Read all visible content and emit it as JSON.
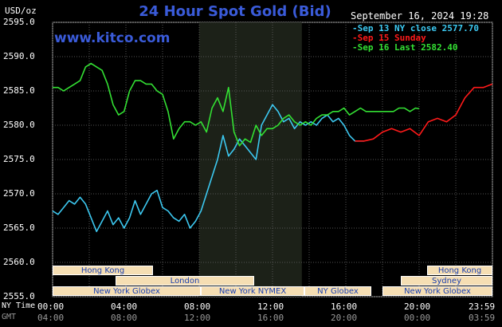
{
  "title": "24 Hour Spot Gold (Bid)",
  "brand": "www.kitco.com",
  "unit": "USD/oz",
  "legend": {
    "date_time": "September 16, 2024 19:28",
    "items": [
      {
        "label": "Sep 13 NY close 2577.70",
        "color": "#3cc8f0"
      },
      {
        "label": "Sep 15 Sunday",
        "color": "#ff1a1a"
      },
      {
        "label": "Sep 16 Last 2582.40",
        "color": "#33e033"
      }
    ]
  },
  "axis_labels": {
    "ny_time": "NY Time",
    "gmt": "GMT",
    "y_ticks": [
      "2595.0",
      "2590.0",
      "2585.0",
      "2580.0",
      "2575.0",
      "2570.0",
      "2565.0",
      "2560.0",
      "2555.0"
    ],
    "x_ny": [
      "00:00",
      "04:00",
      "08:00",
      "12:00",
      "16:00",
      "20:00",
      "23:59"
    ],
    "x_gmt": [
      "04:00",
      "08:00",
      "12:00",
      "16:00",
      "20:00",
      "00:00",
      "03:59"
    ]
  },
  "sessions": [
    {
      "label": "Hong Kong",
      "start": 0,
      "end": 5.45
    },
    {
      "label": "London",
      "start": 3.4,
      "end": 10.9
    },
    {
      "label": "New York Globex",
      "start": 0,
      "end": 8.0
    },
    {
      "label": "New York NYMEX",
      "start": 8.0,
      "end": 13.6
    },
    {
      "label": "NY Globex",
      "start": 13.6,
      "end": 17.0
    },
    {
      "label": "Hong Kong",
      "start": 20.0,
      "end": 23.99
    },
    {
      "label": "Sydney",
      "start": 18.9,
      "end": 23.99
    },
    {
      "label": "New York Globex",
      "start": 18.0,
      "end": 23.99
    }
  ],
  "chart_data": {
    "type": "line",
    "title": "24 Hour Spot Gold (Bid)",
    "xlabel": "NY Time",
    "ylabel": "USD/oz",
    "x_unit": "hours NY time",
    "xlim": [
      0,
      24
    ],
    "ylim": [
      2555.0,
      2595.0
    ],
    "grid": true,
    "legend_position": "top-right",
    "highlight_range": [
      8.0,
      13.6
    ],
    "series": [
      {
        "name": "Sep 13 NY close 2577.70",
        "color": "#3cc8f0",
        "x": [
          0,
          0.3,
          0.6,
          0.9,
          1.2,
          1.5,
          1.8,
          2.1,
          2.4,
          2.7,
          3.0,
          3.3,
          3.6,
          3.9,
          4.2,
          4.5,
          4.8,
          5.1,
          5.4,
          5.7,
          6.0,
          6.3,
          6.6,
          6.9,
          7.2,
          7.5,
          7.8,
          8.1,
          8.4,
          8.7,
          9.0,
          9.3,
          9.6,
          9.9,
          10.2,
          10.5,
          10.8,
          11.1,
          11.4,
          11.7,
          12.0,
          12.3,
          12.6,
          12.9,
          13.2,
          13.5,
          13.8,
          14.1,
          14.4,
          14.7,
          15.0,
          15.3,
          15.6,
          15.9,
          16.2,
          16.5,
          16.8,
          17.0
        ],
        "y": [
          2567.5,
          2567.0,
          2568.0,
          2569.0,
          2568.5,
          2569.5,
          2568.5,
          2566.5,
          2564.5,
          2566.0,
          2567.5,
          2565.5,
          2566.5,
          2565.0,
          2566.5,
          2569.0,
          2567.0,
          2568.5,
          2570.0,
          2570.5,
          2568.0,
          2567.5,
          2566.5,
          2566.0,
          2567.0,
          2565.0,
          2566.0,
          2567.5,
          2570.0,
          2572.5,
          2575.0,
          2578.5,
          2575.5,
          2576.5,
          2578.0,
          2577.0,
          2576.0,
          2575.0,
          2580.0,
          2581.5,
          2583.0,
          2582.0,
          2580.5,
          2581.0,
          2579.5,
          2580.5,
          2580.0,
          2580.5,
          2580.0,
          2581.0,
          2581.5,
          2580.5,
          2581.0,
          2580.0,
          2578.5,
          2577.7,
          2577.7,
          2577.7
        ]
      },
      {
        "name": "Sep 15 Sunday",
        "color": "#ff1a1a",
        "x": [
          16.5,
          17.0,
          17.5,
          18.0,
          18.5,
          19.0,
          19.5,
          20.0,
          20.5,
          21.0,
          21.5,
          22.0,
          22.5,
          23.0,
          23.5,
          23.99
        ],
        "y": [
          2577.7,
          2577.7,
          2578.0,
          2579.0,
          2579.5,
          2579.0,
          2579.5,
          2578.5,
          2580.5,
          2581.0,
          2580.5,
          2581.5,
          2584.0,
          2585.5,
          2585.5,
          2586.0
        ]
      },
      {
        "name": "Sep 16 Last 2582.40",
        "color": "#33e033",
        "x": [
          0,
          0.3,
          0.6,
          0.9,
          1.2,
          1.5,
          1.8,
          2.1,
          2.4,
          2.7,
          3.0,
          3.3,
          3.6,
          3.9,
          4.2,
          4.5,
          4.8,
          5.1,
          5.4,
          5.7,
          6.0,
          6.3,
          6.6,
          6.9,
          7.2,
          7.5,
          7.8,
          8.1,
          8.4,
          8.7,
          9.0,
          9.3,
          9.6,
          9.9,
          10.2,
          10.5,
          10.8,
          11.1,
          11.4,
          11.7,
          12.0,
          12.3,
          12.6,
          12.9,
          13.2,
          13.5,
          13.8,
          14.1,
          14.4,
          14.7,
          15.0,
          15.3,
          15.6,
          15.9,
          16.2,
          16.5,
          16.8,
          17.1,
          17.4,
          17.7,
          18.0,
          18.3,
          18.6,
          18.9,
          19.2,
          19.5,
          19.8,
          20.0
        ],
        "y": [
          2585.5,
          2585.5,
          2585.0,
          2585.5,
          2586.0,
          2586.5,
          2588.5,
          2589.0,
          2588.5,
          2588.0,
          2586.0,
          2583.0,
          2581.5,
          2582.0,
          2585.0,
          2586.5,
          2586.5,
          2586.0,
          2586.0,
          2585.0,
          2584.5,
          2582.0,
          2578.0,
          2579.5,
          2580.5,
          2580.5,
          2580.0,
          2580.5,
          2579.0,
          2582.5,
          2584.0,
          2582.0,
          2585.5,
          2579.0,
          2577.0,
          2578.0,
          2577.5,
          2580.0,
          2578.5,
          2579.5,
          2579.5,
          2580.0,
          2581.0,
          2581.5,
          2580.5,
          2580.0,
          2580.5,
          2580.0,
          2581.0,
          2581.5,
          2581.5,
          2582.0,
          2582.0,
          2582.5,
          2581.5,
          2582.0,
          2582.5,
          2582.0,
          2582.0,
          2582.0,
          2582.0,
          2582.0,
          2582.0,
          2582.5,
          2582.5,
          2582.0,
          2582.5,
          2582.4
        ]
      }
    ]
  }
}
